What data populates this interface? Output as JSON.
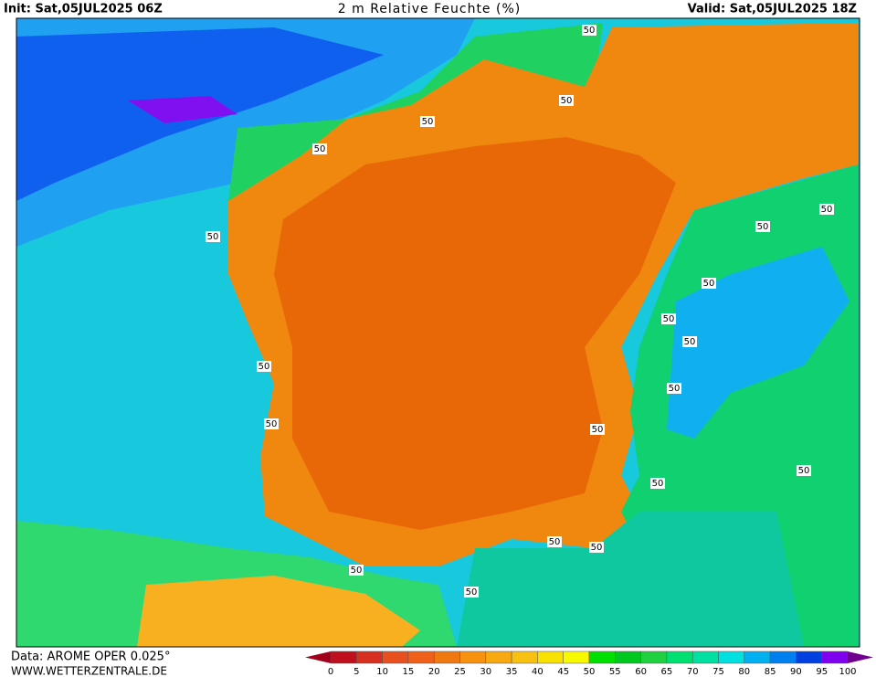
{
  "header": {
    "init": "Init: Sat,05JUL2025 06Z",
    "title": "2 m Relative Feuchte (%)",
    "valid": "Valid: Sat,05JUL2025 18Z"
  },
  "footer": {
    "data": "Data: AROME OPER 0.025°",
    "source": "WWW.WETTERZENTRALE.DE"
  },
  "legend": {
    "ticks": [
      0,
      5,
      10,
      15,
      20,
      25,
      30,
      35,
      40,
      45,
      50,
      55,
      60,
      65,
      70,
      75,
      80,
      85,
      90,
      95,
      100
    ],
    "colors": [
      "#a0001a",
      "#c01020",
      "#d83020",
      "#e85020",
      "#f06018",
      "#f07810",
      "#f89010",
      "#f8a810",
      "#f8c010",
      "#f8e000",
      "#f8f800",
      "#00e000",
      "#00c820",
      "#20d040",
      "#00e070",
      "#00e0a0",
      "#00e0e0",
      "#00b0f0",
      "#0080f0",
      "#0040e0",
      "#8000f0",
      "#700090"
    ]
  },
  "map": {
    "contour_labels": [
      "50",
      "50",
      "50",
      "50",
      "50",
      "50",
      "50",
      "50",
      "50",
      "50",
      "50",
      "50",
      "50",
      "50",
      "50",
      "50",
      "50",
      "50",
      "50",
      "50"
    ]
  }
}
